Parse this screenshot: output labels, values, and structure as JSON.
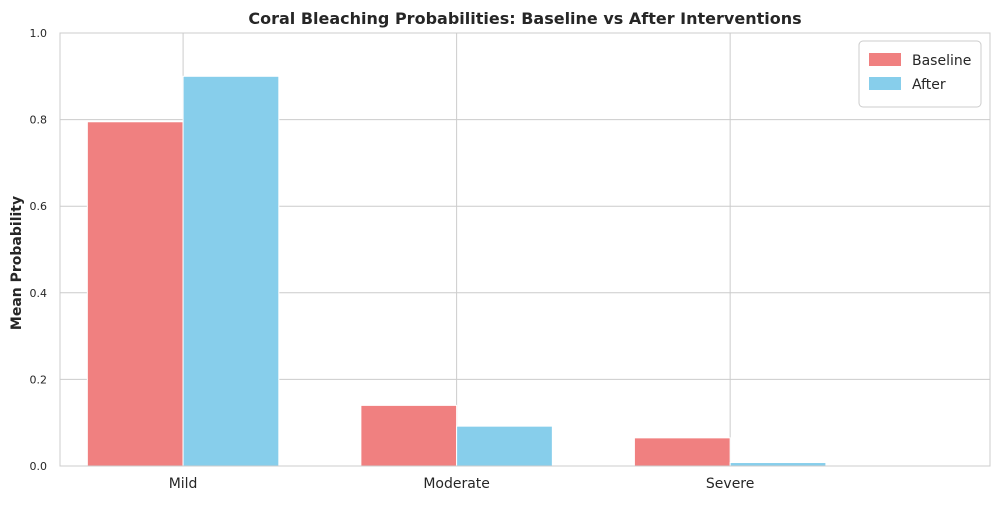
{
  "chart_data": {
    "type": "bar",
    "title": "Coral Bleaching Probabilities: Baseline vs After Interventions",
    "xlabel": "",
    "ylabel": "Mean Probability",
    "categories": [
      "Mild",
      "Moderate",
      "Severe"
    ],
    "series": [
      {
        "name": "Baseline",
        "values": [
          0.795,
          0.14,
          0.065
        ],
        "color": "#f08080"
      },
      {
        "name": "After",
        "values": [
          0.9,
          0.092,
          0.008
        ],
        "color": "#87ceeb"
      }
    ],
    "ylim": [
      0,
      1.0
    ],
    "yticks": [
      0.0,
      0.2,
      0.4,
      0.6,
      0.8,
      1.0
    ],
    "ytick_labels": [
      "0.0",
      "0.2",
      "0.4",
      "0.6",
      "0.8",
      "1.0"
    ],
    "grid": true,
    "legend_position": "top-right",
    "background_color": "#ffffff",
    "grid_color": "#cccccc"
  }
}
